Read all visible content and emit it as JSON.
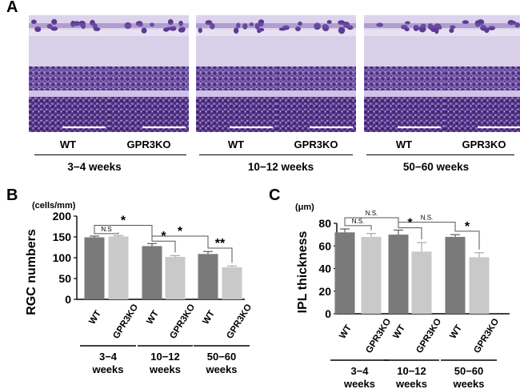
{
  "panel_a": {
    "letter": "A",
    "images": [
      {
        "label": "WT",
        "scale_bar": true
      },
      {
        "label": "GPR3KO",
        "scale_bar": true
      },
      {
        "label": "WT",
        "scale_bar": true
      },
      {
        "label": "GPR3KO",
        "scale_bar": true
      },
      {
        "label": "WT",
        "scale_bar": true
      },
      {
        "label": "GPR3KO",
        "scale_bar": true
      }
    ],
    "groups": [
      "3−4 weeks",
      "10−12 weeks",
      "50−60 weeks"
    ]
  },
  "chart_data": [
    {
      "panel": "B",
      "type": "bar",
      "ylabel": "RGC numbers",
      "unit": "(cells/mm)",
      "ylim": [
        0,
        200
      ],
      "yticks": [
        0,
        50,
        100,
        150,
        200
      ],
      "categories": [
        "WT",
        "GPR3KO",
        "WT",
        "GPR3KO",
        "WT",
        "GPR3KO"
      ],
      "groups": [
        {
          "line1": "3−4",
          "line2": "weeks"
        },
        {
          "line1": "10−12",
          "line2": "weeks"
        },
        {
          "line1": "50−60",
          "line2": "weeks"
        }
      ],
      "values": [
        149,
        151,
        128,
        102,
        109,
        77
      ],
      "errors": [
        3,
        2,
        6,
        3,
        6,
        3
      ],
      "colors": [
        "#7a7a7a",
        "#c9c9c9",
        "#7a7a7a",
        "#c9c9c9",
        "#7a7a7a",
        "#c9c9c9"
      ],
      "significance": [
        {
          "from": 0,
          "to": 1,
          "label": "N.S",
          "y": 158
        },
        {
          "from": 0,
          "to": 2,
          "label": "*",
          "y": 178
        },
        {
          "from": 2,
          "to": 3,
          "label": "*",
          "y": 140
        },
        {
          "from": 2,
          "to": 4,
          "label": "*",
          "y": 152
        },
        {
          "from": 4,
          "to": 5,
          "label": "**",
          "y": 123
        }
      ]
    },
    {
      "panel": "C",
      "type": "bar",
      "ylabel": "IPL thickness",
      "unit": "(μm)",
      "ylim": [
        0,
        80
      ],
      "yticks": [
        0,
        20,
        40,
        60,
        80
      ],
      "categories": [
        "WT",
        "GPR3KO",
        "WT",
        "GPR3KO",
        "WT",
        "GPR3KO"
      ],
      "groups": [
        {
          "line1": "3−4",
          "line2": "weeks"
        },
        {
          "line1": "10−12",
          "line2": "weeks"
        },
        {
          "line1": "50−60",
          "line2": "weeks"
        }
      ],
      "values": [
        72,
        68,
        70,
        55,
        68,
        50
      ],
      "errors": [
        3,
        3,
        4,
        8,
        2,
        4
      ],
      "colors": [
        "#7a7a7a",
        "#c9c9c9",
        "#7a7a7a",
        "#c9c9c9",
        "#7a7a7a",
        "#c9c9c9"
      ],
      "significance": [
        {
          "from": 0,
          "to": 1,
          "label": "N.S.",
          "y": 78
        },
        {
          "from": 0,
          "to": 2,
          "label": "N.S.",
          "y": 85
        },
        {
          "from": 2,
          "to": 3,
          "label": "*",
          "y": 76
        },
        {
          "from": 2,
          "to": 4,
          "label": "N.S.",
          "y": 81
        },
        {
          "from": 4,
          "to": 5,
          "label": "*",
          "y": 73
        }
      ]
    }
  ]
}
